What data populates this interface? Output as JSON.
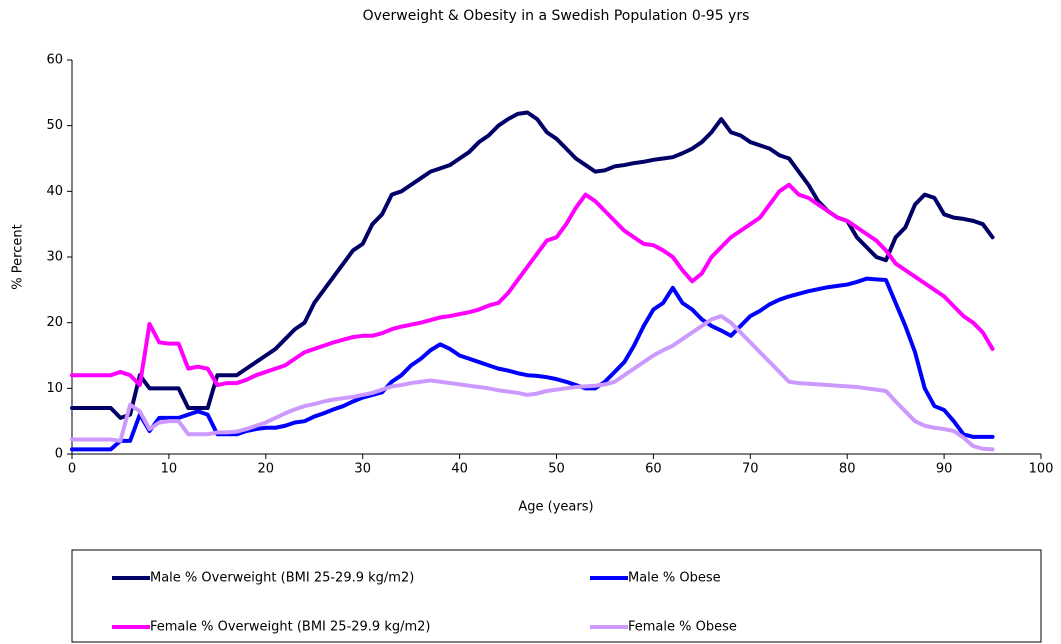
{
  "chart_data": {
    "type": "line",
    "title": "Overweight & Obesity in a Swedish Population 0-95 yrs",
    "x_label": "Age (years)",
    "y_label": "% Percent",
    "xlim": [
      0,
      100
    ],
    "xticks": [
      0,
      10,
      20,
      30,
      40,
      50,
      60,
      70,
      80,
      90,
      100
    ],
    "ylim": [
      0,
      60
    ],
    "yticks": [
      0,
      10,
      20,
      30,
      40,
      50,
      60
    ],
    "grid": false,
    "legend": "bottom",
    "x": [
      0,
      1,
      2,
      3,
      4,
      5,
      6,
      7,
      8,
      9,
      10,
      11,
      12,
      13,
      14,
      15,
      16,
      17,
      18,
      19,
      20,
      21,
      22,
      23,
      24,
      25,
      26,
      27,
      28,
      29,
      30,
      31,
      32,
      33,
      34,
      35,
      36,
      37,
      38,
      39,
      40,
      41,
      42,
      43,
      44,
      45,
      46,
      47,
      48,
      49,
      50,
      51,
      52,
      53,
      54,
      55,
      56,
      57,
      58,
      59,
      60,
      61,
      62,
      63,
      64,
      65,
      66,
      67,
      68,
      69,
      70,
      71,
      72,
      73,
      74,
      75,
      76,
      77,
      78,
      79,
      80,
      81,
      82,
      83,
      84,
      85,
      86,
      87,
      88,
      89,
      90,
      91,
      92,
      93,
      94,
      95
    ],
    "series": [
      {
        "name": "Male % Overweight (BMI 25-29.9 kg/m2)",
        "color": "#000066",
        "values": [
          7,
          7,
          7,
          7,
          7,
          5.5,
          6,
          12,
          10,
          10,
          10,
          10,
          7,
          7,
          7,
          12,
          12,
          12,
          13,
          14,
          15,
          16,
          17.5,
          19,
          20,
          23,
          25,
          27,
          29,
          31,
          32,
          35,
          36.5,
          39.5,
          40,
          41,
          42,
          43,
          43.5,
          44,
          45,
          46,
          47.5,
          48.5,
          50,
          51,
          51.8,
          52,
          51,
          49,
          48,
          46.5,
          45,
          44,
          43,
          43.2,
          43.8,
          44,
          44.3,
          44.5,
          44.8,
          45,
          45.2,
          45.8,
          46.5,
          47.5,
          49,
          51,
          49,
          48.5,
          47.5,
          47,
          46.5,
          45.5,
          45,
          43,
          41,
          38.5,
          37,
          36,
          35.5,
          33,
          31.5,
          30,
          29.5,
          33,
          34.5,
          38,
          39.5,
          39,
          36.5,
          36,
          35.8,
          35.5,
          35,
          33
        ]
      },
      {
        "name": "Male % Obese",
        "color": "#0000ff",
        "values": [
          0.7,
          0.7,
          0.7,
          0.7,
          0.7,
          2,
          2,
          6,
          3.5,
          5.5,
          5.5,
          5.5,
          6,
          6.5,
          6,
          3,
          3,
          3,
          3.5,
          3.8,
          4,
          4,
          4.3,
          4.8,
          5,
          5.7,
          6.2,
          6.8,
          7.3,
          8,
          8.6,
          9,
          9.4,
          11,
          12,
          13.5,
          14.5,
          15.8,
          16.7,
          16,
          15,
          14.5,
          14,
          13.5,
          13,
          12.7,
          12.3,
          12,
          11.9,
          11.7,
          11.4,
          11,
          10.5,
          10,
          10,
          11,
          12.5,
          14,
          16.5,
          19.5,
          22,
          23,
          25.3,
          23,
          22,
          20.5,
          19.5,
          18.8,
          18,
          19.5,
          21,
          21.8,
          22.8,
          23.5,
          24,
          24.4,
          24.8,
          25.1,
          25.4,
          25.6,
          25.8,
          26.2,
          26.7,
          26.6,
          26.5,
          23,
          19.5,
          15.5,
          10,
          7.3,
          6.7,
          5,
          3,
          2.6,
          2.6,
          2.6
        ]
      },
      {
        "name": "Female % Overweight (BMI 25-29.9 kg/m2)",
        "color": "#ff00ff",
        "values": [
          12,
          12,
          12,
          12,
          12,
          12.5,
          12,
          10.5,
          19.8,
          17,
          16.8,
          16.8,
          13,
          13.3,
          13,
          10.5,
          10.8,
          10.8,
          11.3,
          12,
          12.5,
          13,
          13.5,
          14.5,
          15.5,
          16,
          16.5,
          17,
          17.4,
          17.8,
          18,
          18,
          18.4,
          19,
          19.4,
          19.7,
          20,
          20.4,
          20.8,
          21,
          21.3,
          21.6,
          22,
          22.6,
          23,
          24.5,
          26.5,
          28.5,
          30.5,
          32.5,
          33,
          35,
          37.5,
          39.5,
          38.5,
          37,
          35.5,
          34,
          33,
          32,
          31.8,
          31,
          30,
          28,
          26.3,
          27.5,
          30,
          31.5,
          33,
          34,
          35,
          36,
          38,
          40,
          41,
          39.5,
          39,
          38,
          37,
          36,
          35.5,
          34.5,
          33.5,
          32.5,
          31,
          29,
          28,
          27,
          26,
          25,
          24,
          22.5,
          21,
          20,
          18.5,
          16
        ]
      },
      {
        "name": "Female % Obese",
        "color": "#cc99ff",
        "values": [
          2.2,
          2.2,
          2.2,
          2.2,
          2.2,
          2,
          7.5,
          6.5,
          3.8,
          4.8,
          5,
          5,
          3,
          3,
          3,
          3.3,
          3.3,
          3.4,
          3.8,
          4.3,
          4.8,
          5.5,
          6.2,
          6.8,
          7.3,
          7.6,
          8,
          8.3,
          8.5,
          8.7,
          9,
          9.3,
          9.8,
          10.3,
          10.5,
          10.8,
          11,
          11.2,
          11,
          10.8,
          10.6,
          10.4,
          10.2,
          10,
          9.7,
          9.5,
          9.3,
          9,
          9.2,
          9.6,
          9.8,
          10,
          10.2,
          10.3,
          10.4,
          10.6,
          11,
          12,
          13,
          14,
          15,
          15.8,
          16.5,
          17.5,
          18.5,
          19.5,
          20.5,
          21,
          20,
          18.5,
          17,
          15.5,
          14,
          12.5,
          11,
          10.8,
          10.7,
          10.6,
          10.5,
          10.4,
          10.3,
          10.2,
          10,
          9.8,
          9.6,
          8,
          6.5,
          5,
          4.3,
          4,
          3.8,
          3.5,
          2.5,
          1.2,
          0.8,
          0.7
        ]
      }
    ]
  }
}
